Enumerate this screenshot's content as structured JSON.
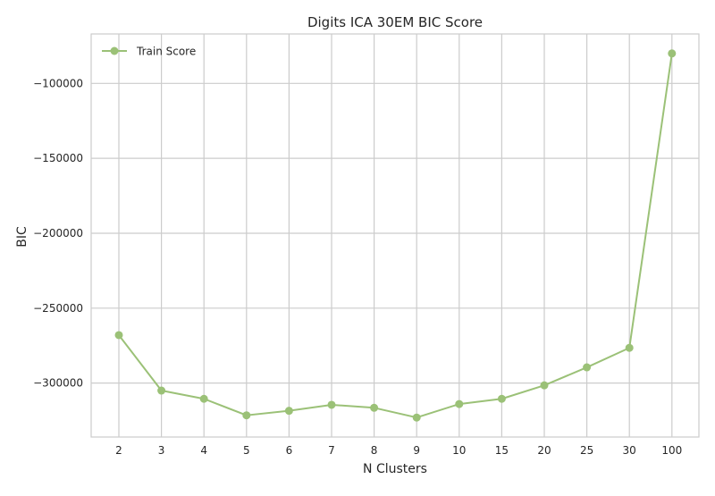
{
  "chart_data": {
    "type": "line",
    "title": "Digits ICA 30EM BIC Score",
    "xlabel": "N Clusters",
    "ylabel": "BIC",
    "categories": [
      "2",
      "3",
      "4",
      "5",
      "6",
      "7",
      "8",
      "9",
      "10",
      "15",
      "20",
      "25",
      "30",
      "100"
    ],
    "series": [
      {
        "name": "Train Score",
        "color": "#9bc177",
        "marker": "circle",
        "values": [
          -268000,
          -305000,
          -310500,
          -321500,
          -318500,
          -314500,
          -316500,
          -323000,
          -314000,
          -310500,
          -301500,
          -289500,
          -276500,
          -80000
        ]
      }
    ],
    "y_ticks": [
      -300000,
      -250000,
      -200000,
      -150000,
      -100000
    ],
    "y_tick_labels": [
      "−300000",
      "−250000",
      "−200000",
      "−150000",
      "−100000"
    ],
    "ylim": [
      -336000,
      -67000
    ],
    "grid": true,
    "legend_position": "top-left",
    "colors": {
      "grid": "#cccccc",
      "frame": "#cccccc",
      "text": "#262626"
    }
  }
}
